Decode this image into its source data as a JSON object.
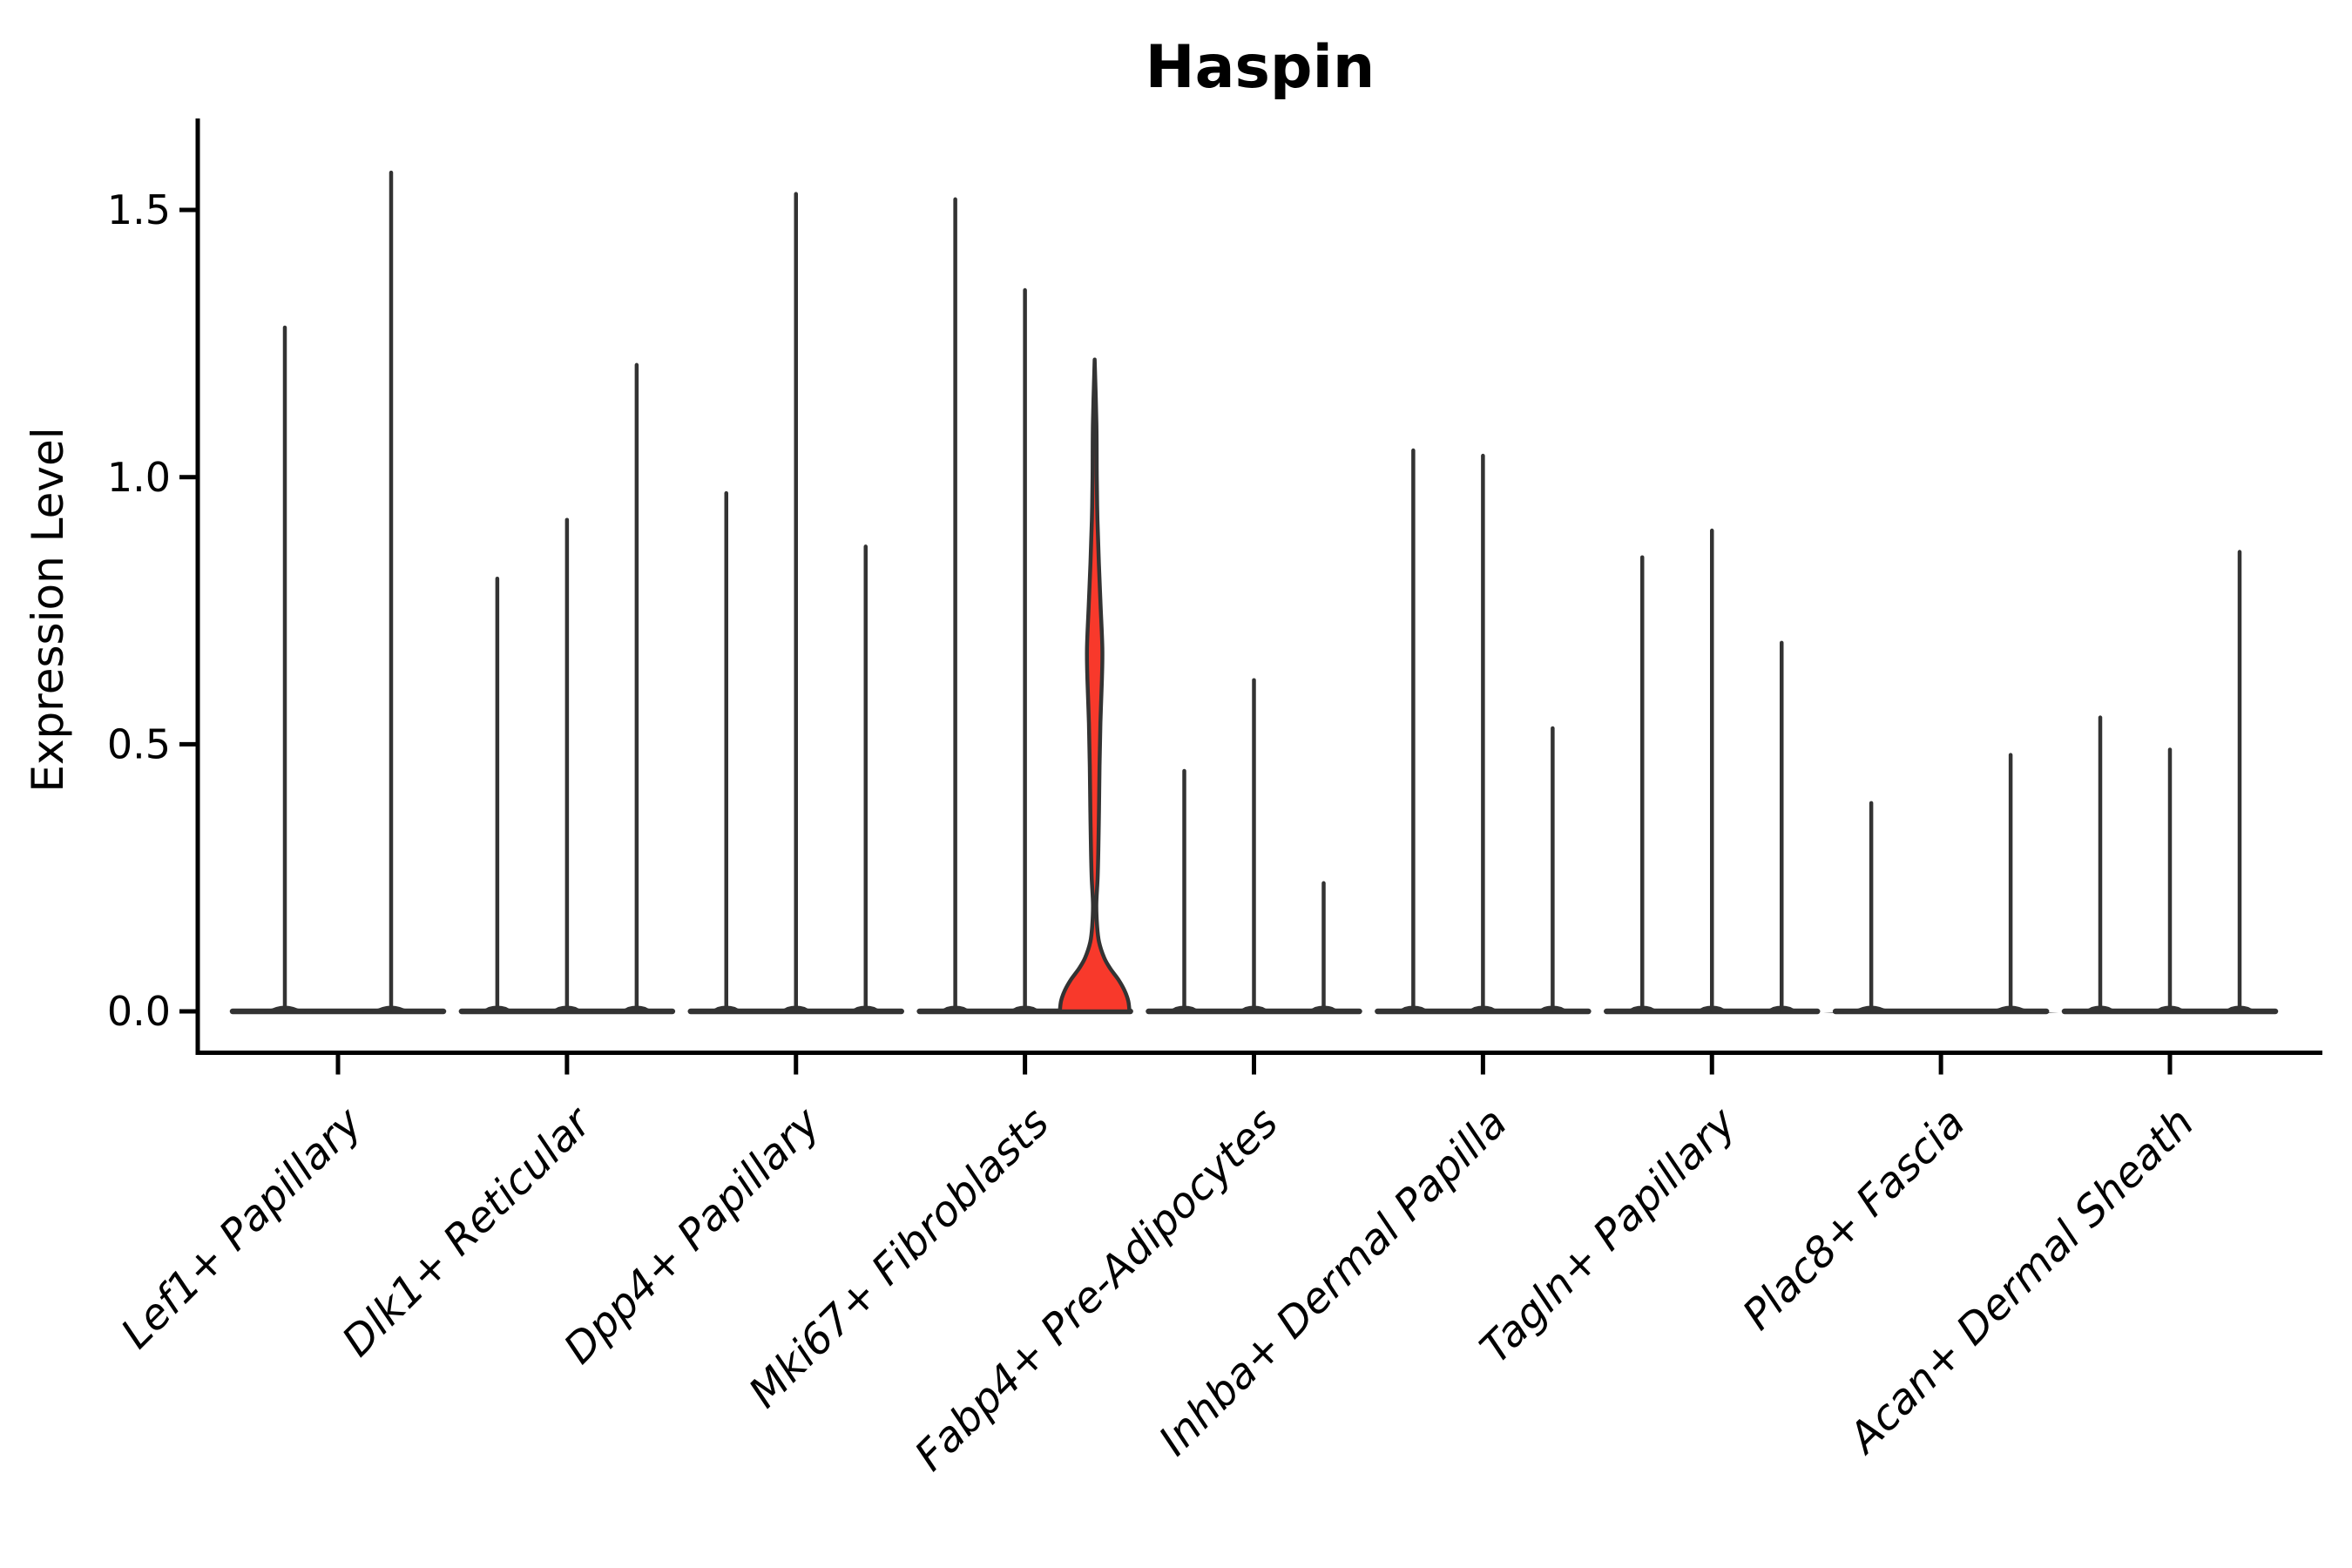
{
  "chart_data": {
    "type": "violin",
    "title": "Haspin",
    "ylabel": "Expression Level",
    "xlabel": "",
    "ylim": [
      0,
      1.66
    ],
    "ytick_labels": [
      "0.0",
      "0.5",
      "1.0",
      "1.5"
    ],
    "ytick_values": [
      0.0,
      0.5,
      1.0,
      1.5
    ],
    "grid": false,
    "legend": "none",
    "categories": [
      "Lef1+ Papillary",
      "Dlk1+ Reticular",
      "Dpp4+ Papillary",
      "Mki67+ Fibroblasts",
      "Fabp4+ Pre-Adipocytes",
      "Inhba+ Dermal Papilla",
      "Tagln+ Papillary",
      "Plac8+ Fascia",
      "Acan+ Dermal Sheath"
    ],
    "groups": [
      {
        "category": "Lef1+ Papillary",
        "violins": [
          {
            "offset": -61,
            "max": 1.28
          },
          {
            "offset": 61,
            "max": 1.57
          }
        ]
      },
      {
        "category": "Dlk1+ Reticular",
        "violins": [
          {
            "offset": -80,
            "max": 0.81
          },
          {
            "offset": 0,
            "max": 0.92
          },
          {
            "offset": 80,
            "max": 1.21
          }
        ]
      },
      {
        "category": "Dpp4+ Papillary",
        "violins": [
          {
            "offset": -80,
            "max": 0.97
          },
          {
            "offset": 0,
            "max": 1.53
          },
          {
            "offset": 80,
            "max": 0.87
          }
        ]
      },
      {
        "category": "Mki67+ Fibroblasts",
        "violins": [
          {
            "offset": -80,
            "max": 1.52
          },
          {
            "offset": 0,
            "max": 1.35
          },
          {
            "offset": 80,
            "max": 1.22,
            "filled": true
          }
        ]
      },
      {
        "category": "Fabp4+ Pre-Adipocytes",
        "violins": [
          {
            "offset": -80,
            "max": 0.45
          },
          {
            "offset": 0,
            "max": 0.62
          },
          {
            "offset": 80,
            "max": 0.24
          }
        ]
      },
      {
        "category": "Inhba+ Dermal Papilla",
        "violins": [
          {
            "offset": -80,
            "max": 1.05
          },
          {
            "offset": 0,
            "max": 1.04
          },
          {
            "offset": 80,
            "max": 0.53
          }
        ]
      },
      {
        "category": "Tagln+ Papillary",
        "violins": [
          {
            "offset": -80,
            "max": 0.85
          },
          {
            "offset": 0,
            "max": 0.9
          },
          {
            "offset": 80,
            "max": 0.69
          }
        ]
      },
      {
        "category": "Plac8+ Fascia",
        "violins": [
          {
            "offset": -80,
            "max": 0.39
          },
          {
            "offset": 80,
            "max": 0.48
          }
        ]
      },
      {
        "category": "Acan+ Dermal Sheath",
        "violins": [
          {
            "offset": -80,
            "max": 0.55
          },
          {
            "offset": 0,
            "max": 0.49
          },
          {
            "offset": 80,
            "max": 0.86
          }
        ]
      }
    ],
    "highlight_violin": {
      "category": "Mki67+ Fibroblasts",
      "max": 1.22,
      "fill_color": "#f8392b",
      "profile": [
        [
          1.22,
          0.0
        ],
        [
          1.1,
          2.0
        ],
        [
          1.0,
          2.4
        ],
        [
          0.92,
          3.2
        ],
        [
          0.84,
          4.8
        ],
        [
          0.76,
          6.8
        ],
        [
          0.68,
          8.8
        ],
        [
          0.62,
          8.3
        ],
        [
          0.54,
          6.6
        ],
        [
          0.46,
          5.6
        ],
        [
          0.38,
          5.0
        ],
        [
          0.3,
          4.2
        ],
        [
          0.25,
          3.4
        ],
        [
          0.2,
          1.9
        ],
        [
          0.16,
          2.8
        ],
        [
          0.13,
          5.0
        ],
        [
          0.1,
          11.0
        ],
        [
          0.08,
          18.0
        ],
        [
          0.06,
          27.0
        ],
        [
          0.04,
          34.0
        ],
        [
          0.02,
          38.5
        ],
        [
          0.0,
          40.0
        ]
      ]
    },
    "colors": {
      "violin_line": "#333333",
      "axis": "#000000",
      "text": "#000000",
      "highlight_fill": "#f8392b",
      "background": "#ffffff"
    }
  }
}
